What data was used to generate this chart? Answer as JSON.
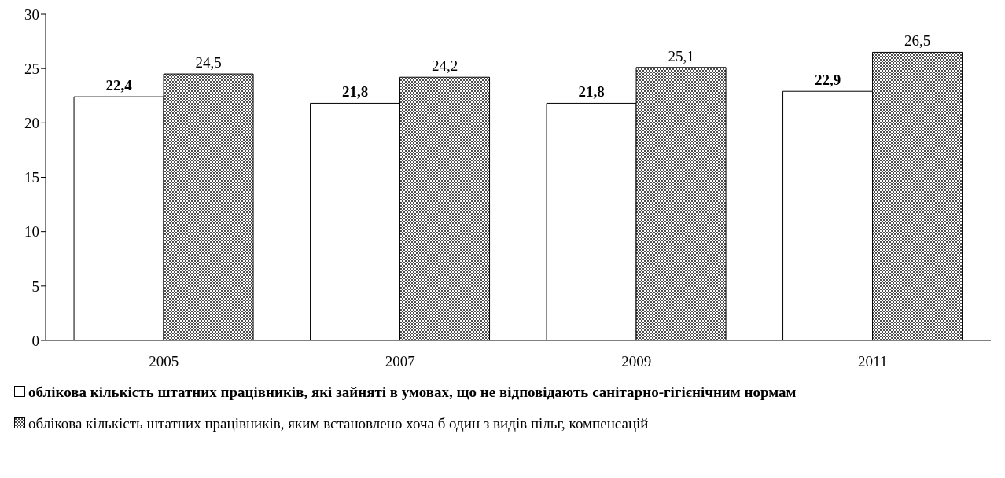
{
  "chart_data": {
    "type": "bar",
    "categories": [
      "2005",
      "2007",
      "2009",
      "2011"
    ],
    "series": [
      {
        "name": "облікова кількість штатних працівників, які зайняті в умовах, що не відповідають санітарно-гігієнічним нормам",
        "color": "#ffffff",
        "values": [
          22.4,
          21.8,
          21.8,
          22.9
        ],
        "value_labels": [
          "22,4",
          "21,8",
          "21,8",
          "22,9"
        ]
      },
      {
        "name": "облікова кількість штатних працівників, яким встановлено хоча б один з видів пільг, компенсацій",
        "color": "#000000",
        "values": [
          24.5,
          24.2,
          25.1,
          26.5
        ],
        "value_labels": [
          "24,5",
          "24,2",
          "25,1",
          "26,5"
        ]
      }
    ],
    "ylim": [
      0,
      30
    ],
    "yticks": [
      0,
      5,
      10,
      15,
      20,
      25,
      30
    ],
    "legend": "bottom"
  }
}
